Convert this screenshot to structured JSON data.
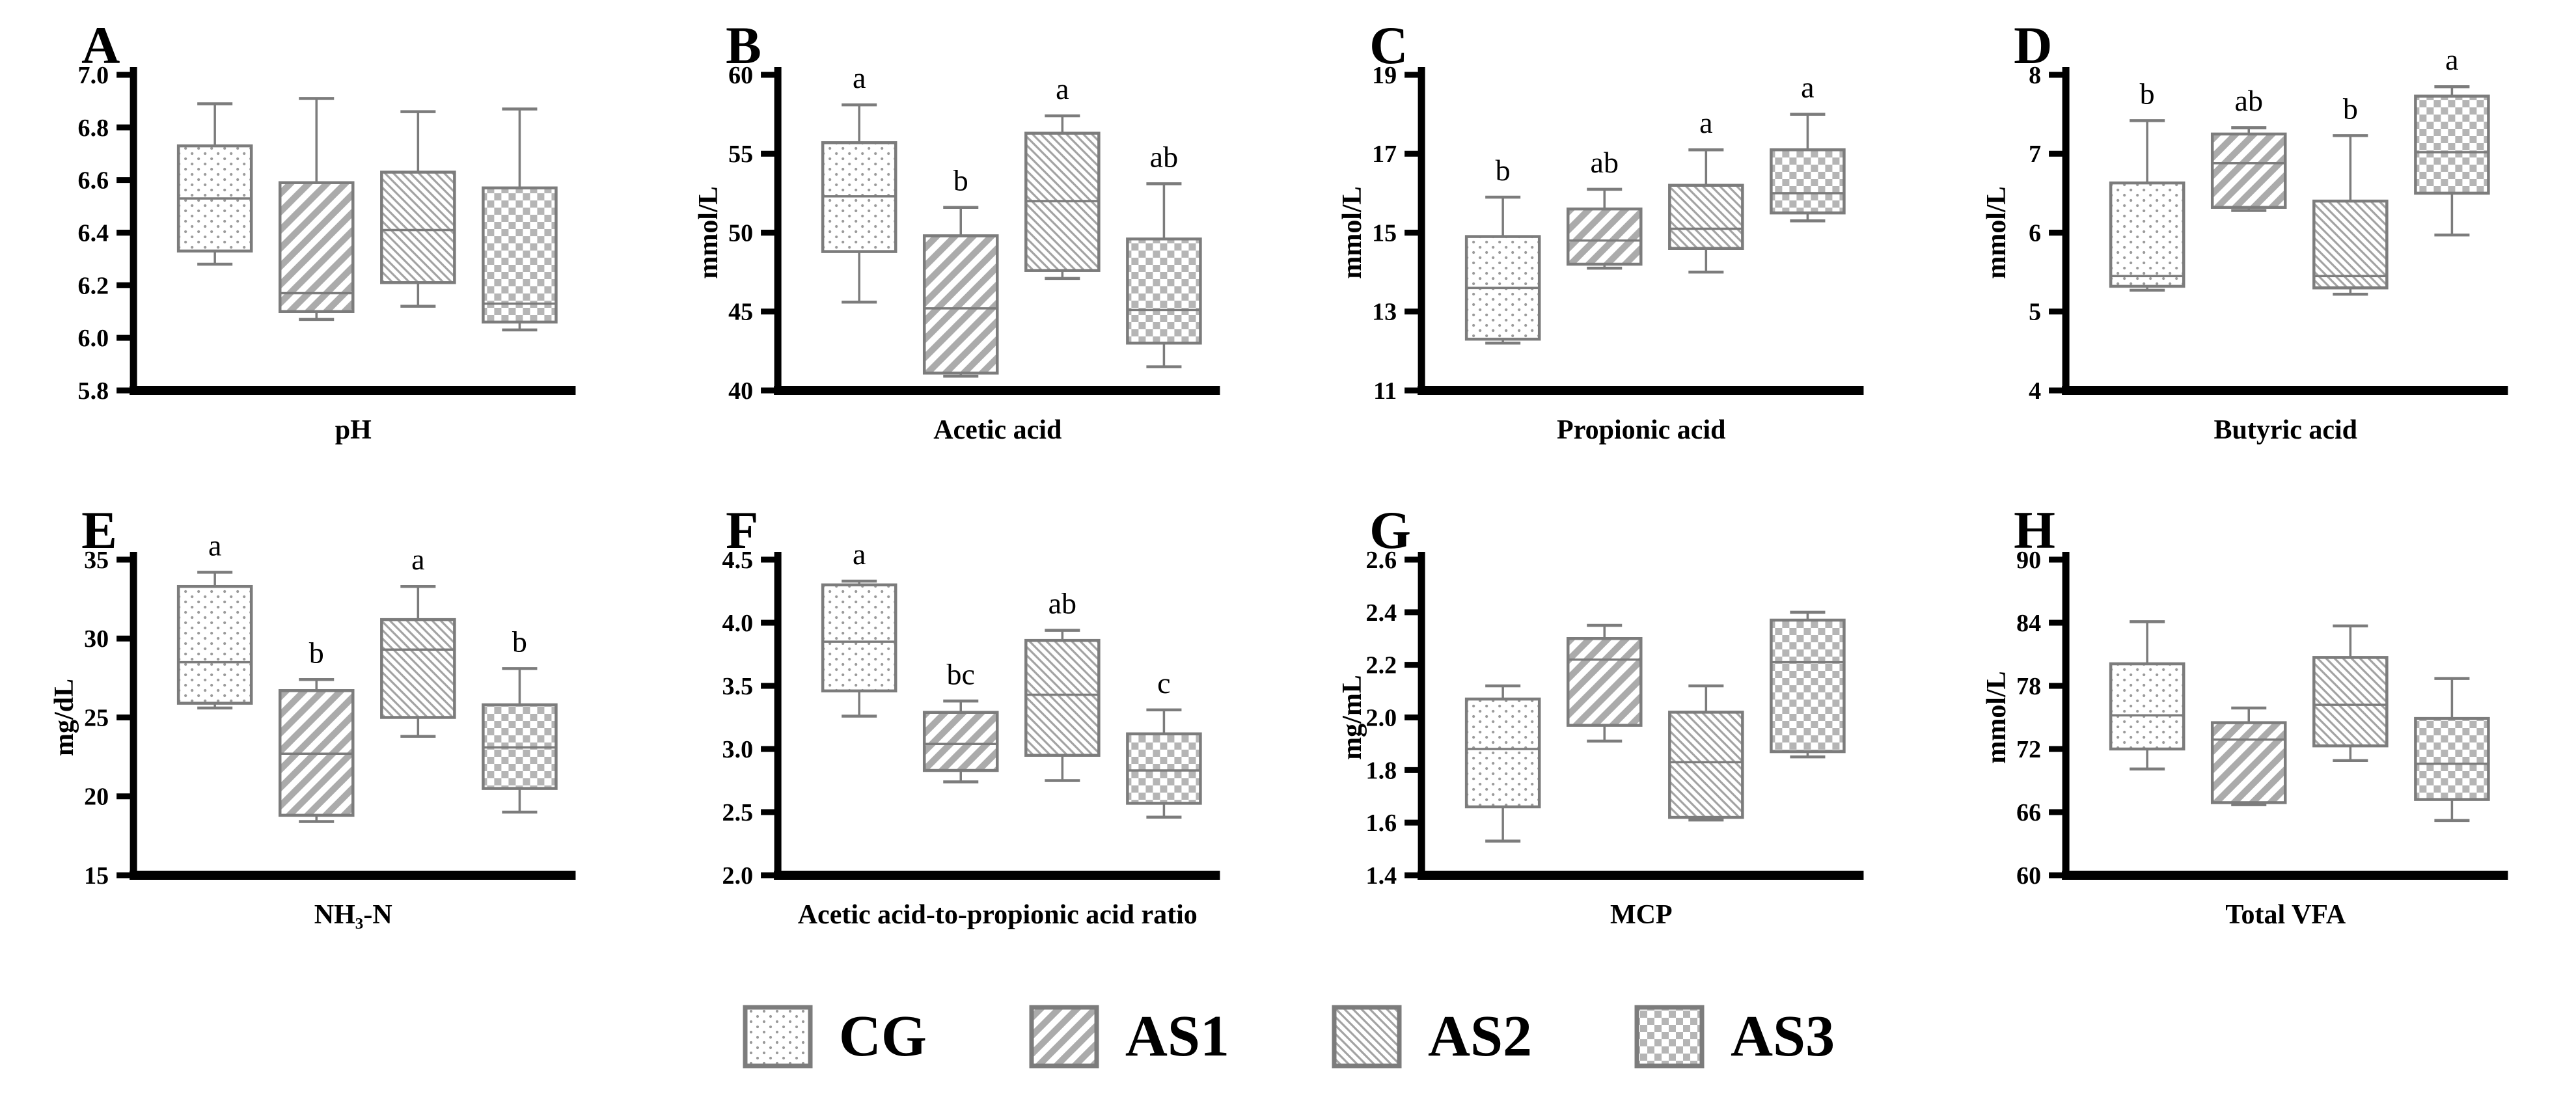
{
  "figure": {
    "background": "#ffffff"
  },
  "styles": {
    "axis_color": "#000000",
    "box_stroke": "#7c7c7c",
    "whisker_color": "#7c7c7c",
    "dots_gray": "#9a9a9a",
    "stripes_up_gray": "#ababab",
    "stripes_down_gray": "#a3a3a3",
    "checker_gray": "#b5b5b5",
    "text_color": "#000000"
  },
  "legend": {
    "items": [
      {
        "label": "CG",
        "pattern": "dots"
      },
      {
        "label": "AS1",
        "pattern": "stripes-up"
      },
      {
        "label": "AS2",
        "pattern": "stripes-down"
      },
      {
        "label": "AS3",
        "pattern": "checker"
      }
    ]
  },
  "chart_data": [
    {
      "panel": "A",
      "type": "box",
      "xlabel": "pH",
      "ylabel": "",
      "ylim": [
        5.8,
        7.0
      ],
      "yticks": [
        "7.0",
        "6.8",
        "6.6",
        "6.4",
        "6.2",
        "6.0",
        "5.8"
      ],
      "groups": [
        "CG",
        "AS1",
        "AS2",
        "AS3"
      ],
      "boxes": [
        {
          "group": "CG",
          "pattern": "dots",
          "whisker_low": 6.28,
          "q1": 6.33,
          "median": 6.53,
          "q3": 6.73,
          "whisker_high": 6.89,
          "sig": ""
        },
        {
          "group": "AS1",
          "pattern": "stripes-up",
          "whisker_low": 6.07,
          "q1": 6.1,
          "median": 6.17,
          "q3": 6.59,
          "whisker_high": 6.91,
          "sig": ""
        },
        {
          "group": "AS2",
          "pattern": "stripes-down",
          "whisker_low": 6.12,
          "q1": 6.21,
          "median": 6.41,
          "q3": 6.63,
          "whisker_high": 6.86,
          "sig": ""
        },
        {
          "group": "AS3",
          "pattern": "checker",
          "whisker_low": 6.03,
          "q1": 6.06,
          "median": 6.13,
          "q3": 6.57,
          "whisker_high": 6.87,
          "sig": ""
        }
      ]
    },
    {
      "panel": "B",
      "type": "box",
      "xlabel": "Acetic acid",
      "ylabel": "mmol/L",
      "ylim": [
        40,
        60
      ],
      "yticks": [
        "60",
        "55",
        "50",
        "45",
        "40"
      ],
      "groups": [
        "CG",
        "AS1",
        "AS2",
        "AS3"
      ],
      "boxes": [
        {
          "group": "CG",
          "pattern": "dots",
          "whisker_low": 45.6,
          "q1": 48.8,
          "median": 52.3,
          "q3": 55.7,
          "whisker_high": 58.1,
          "sig": "a"
        },
        {
          "group": "AS1",
          "pattern": "stripes-up",
          "whisker_low": 40.9,
          "q1": 41.1,
          "median": 45.2,
          "q3": 49.8,
          "whisker_high": 51.6,
          "sig": "b"
        },
        {
          "group": "AS2",
          "pattern": "stripes-down",
          "whisker_low": 47.1,
          "q1": 47.6,
          "median": 52.0,
          "q3": 56.3,
          "whisker_high": 57.4,
          "sig": "a"
        },
        {
          "group": "AS3",
          "pattern": "checker",
          "whisker_low": 41.5,
          "q1": 43.0,
          "median": 45.1,
          "q3": 49.6,
          "whisker_high": 53.1,
          "sig": "ab"
        }
      ]
    },
    {
      "panel": "C",
      "type": "box",
      "xlabel": "Propionic acid",
      "ylabel": "mmol/L",
      "ylim": [
        11,
        19
      ],
      "yticks": [
        "19",
        "17",
        "15",
        "13",
        "11"
      ],
      "groups": [
        "CG",
        "AS1",
        "AS2",
        "AS3"
      ],
      "boxes": [
        {
          "group": "CG",
          "pattern": "dots",
          "whisker_low": 12.2,
          "q1": 12.3,
          "median": 13.6,
          "q3": 14.9,
          "whisker_high": 15.9,
          "sig": "b"
        },
        {
          "group": "AS1",
          "pattern": "stripes-up",
          "whisker_low": 14.1,
          "q1": 14.2,
          "median": 14.8,
          "q3": 15.6,
          "whisker_high": 16.1,
          "sig": "ab"
        },
        {
          "group": "AS2",
          "pattern": "stripes-down",
          "whisker_low": 14.0,
          "q1": 14.6,
          "median": 15.1,
          "q3": 16.2,
          "whisker_high": 17.1,
          "sig": "a"
        },
        {
          "group": "AS3",
          "pattern": "checker",
          "whisker_low": 15.3,
          "q1": 15.5,
          "median": 16.0,
          "q3": 17.1,
          "whisker_high": 18.0,
          "sig": "a"
        }
      ]
    },
    {
      "panel": "D",
      "type": "box",
      "xlabel": "Butyric acid",
      "ylabel": "mmol/L",
      "ylim": [
        4,
        8
      ],
      "yticks": [
        "8",
        "7",
        "6",
        "5",
        "4"
      ],
      "groups": [
        "CG",
        "AS1",
        "AS2",
        "AS3"
      ],
      "boxes": [
        {
          "group": "CG",
          "pattern": "dots",
          "whisker_low": 5.27,
          "q1": 5.32,
          "median": 5.45,
          "q3": 6.63,
          "whisker_high": 7.42,
          "sig": "b"
        },
        {
          "group": "AS1",
          "pattern": "stripes-up",
          "whisker_low": 6.28,
          "q1": 6.32,
          "median": 6.88,
          "q3": 7.25,
          "whisker_high": 7.33,
          "sig": "ab"
        },
        {
          "group": "AS2",
          "pattern": "stripes-down",
          "whisker_low": 5.22,
          "q1": 5.3,
          "median": 5.45,
          "q3": 6.4,
          "whisker_high": 7.23,
          "sig": "b"
        },
        {
          "group": "AS3",
          "pattern": "checker",
          "whisker_low": 5.97,
          "q1": 6.5,
          "median": 7.02,
          "q3": 7.73,
          "whisker_high": 7.85,
          "sig": "a"
        }
      ]
    },
    {
      "panel": "E",
      "type": "box",
      "xlabel": "NH₃-N",
      "ylabel": "mg/dL",
      "ylim": [
        15,
        35
      ],
      "yticks": [
        "35",
        "30",
        "25",
        "20",
        "15"
      ],
      "groups": [
        "CG",
        "AS1",
        "AS2",
        "AS3"
      ],
      "boxes": [
        {
          "group": "CG",
          "pattern": "dots",
          "whisker_low": 25.6,
          "q1": 25.9,
          "median": 28.5,
          "q3": 33.3,
          "whisker_high": 34.2,
          "sig": "a"
        },
        {
          "group": "AS1",
          "pattern": "stripes-up",
          "whisker_low": 18.4,
          "q1": 18.8,
          "median": 22.7,
          "q3": 26.7,
          "whisker_high": 27.4,
          "sig": "b"
        },
        {
          "group": "AS2",
          "pattern": "stripes-down",
          "whisker_low": 23.8,
          "q1": 25.0,
          "median": 29.3,
          "q3": 31.2,
          "whisker_high": 33.3,
          "sig": "a"
        },
        {
          "group": "AS3",
          "pattern": "checker",
          "whisker_low": 19.0,
          "q1": 20.5,
          "median": 23.1,
          "q3": 25.8,
          "whisker_high": 28.1,
          "sig": "b"
        }
      ]
    },
    {
      "panel": "F",
      "type": "box",
      "xlabel": "Acetic acid-to-propionic acid ratio",
      "ylabel": "",
      "ylim": [
        2.0,
        4.5
      ],
      "yticks": [
        "4.5",
        "4.0",
        "3.5",
        "3.0",
        "2.5",
        "2.0"
      ],
      "groups": [
        "CG",
        "AS1",
        "AS2",
        "AS3"
      ],
      "boxes": [
        {
          "group": "CG",
          "pattern": "dots",
          "whisker_low": 3.26,
          "q1": 3.46,
          "median": 3.85,
          "q3": 4.3,
          "whisker_high": 4.33,
          "sig": "a"
        },
        {
          "group": "AS1",
          "pattern": "stripes-up",
          "whisker_low": 2.74,
          "q1": 2.83,
          "median": 3.04,
          "q3": 3.29,
          "whisker_high": 3.38,
          "sig": "bc"
        },
        {
          "group": "AS2",
          "pattern": "stripes-down",
          "whisker_low": 2.75,
          "q1": 2.95,
          "median": 3.43,
          "q3": 3.86,
          "whisker_high": 3.94,
          "sig": "ab"
        },
        {
          "group": "AS3",
          "pattern": "checker",
          "whisker_low": 2.46,
          "q1": 2.57,
          "median": 2.83,
          "q3": 3.12,
          "whisker_high": 3.31,
          "sig": "c"
        }
      ]
    },
    {
      "panel": "G",
      "type": "box",
      "xlabel": "MCP",
      "ylabel": "mg/mL",
      "ylim": [
        1.4,
        2.6
      ],
      "yticks": [
        "2.6",
        "2.4",
        "2.2",
        "2.0",
        "1.8",
        "1.6",
        "1.4"
      ],
      "groups": [
        "CG",
        "AS1",
        "AS2",
        "AS3"
      ],
      "boxes": [
        {
          "group": "CG",
          "pattern": "dots",
          "whisker_low": 1.53,
          "q1": 1.66,
          "median": 1.88,
          "q3": 2.07,
          "whisker_high": 2.12,
          "sig": ""
        },
        {
          "group": "AS1",
          "pattern": "stripes-up",
          "whisker_low": 1.91,
          "q1": 1.97,
          "median": 2.22,
          "q3": 2.3,
          "whisker_high": 2.35,
          "sig": ""
        },
        {
          "group": "AS2",
          "pattern": "stripes-down",
          "whisker_low": 1.61,
          "q1": 1.62,
          "median": 1.83,
          "q3": 2.02,
          "whisker_high": 2.12,
          "sig": ""
        },
        {
          "group": "AS3",
          "pattern": "checker",
          "whisker_low": 1.85,
          "q1": 1.87,
          "median": 2.21,
          "q3": 2.37,
          "whisker_high": 2.4,
          "sig": ""
        }
      ]
    },
    {
      "panel": "H",
      "type": "box",
      "xlabel": "Total VFA",
      "ylabel": "mmol/L",
      "ylim": [
        60,
        90
      ],
      "yticks": [
        "90",
        "84",
        "78",
        "72",
        "66",
        "60"
      ],
      "groups": [
        "CG",
        "AS1",
        "AS2",
        "AS3"
      ],
      "boxes": [
        {
          "group": "CG",
          "pattern": "dots",
          "whisker_low": 70.1,
          "q1": 72.0,
          "median": 75.2,
          "q3": 80.1,
          "whisker_high": 84.1,
          "sig": ""
        },
        {
          "group": "AS1",
          "pattern": "stripes-up",
          "whisker_low": 66.7,
          "q1": 66.9,
          "median": 72.9,
          "q3": 74.5,
          "whisker_high": 75.9,
          "sig": ""
        },
        {
          "group": "AS2",
          "pattern": "stripes-down",
          "whisker_low": 70.9,
          "q1": 72.3,
          "median": 76.2,
          "q3": 80.7,
          "whisker_high": 83.7,
          "sig": ""
        },
        {
          "group": "AS3",
          "pattern": "checker",
          "whisker_low": 65.2,
          "q1": 67.2,
          "median": 70.6,
          "q3": 74.9,
          "whisker_high": 78.7,
          "sig": ""
        }
      ]
    }
  ]
}
